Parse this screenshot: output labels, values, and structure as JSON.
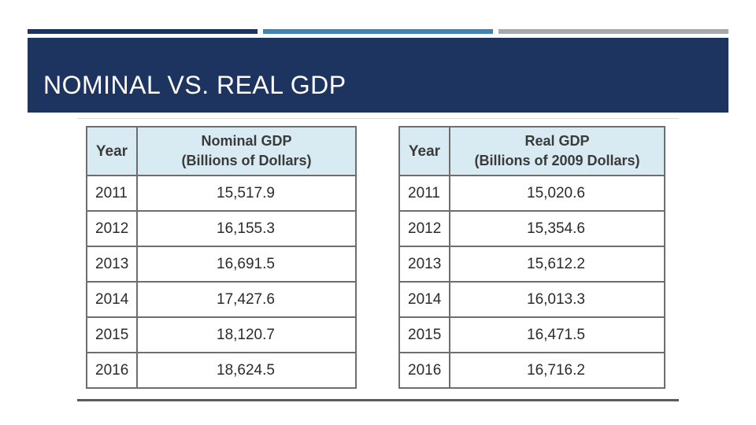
{
  "slide": {
    "title": "NOMINAL VS. REAL GDP",
    "colors": {
      "band": "#1d3461",
      "accent_mid": "#3f84b5",
      "accent_right": "#a3a9ad",
      "header_fill": "#d8ebf3"
    }
  },
  "nominal_table": {
    "year_header": "Year",
    "value_header_line1": "Nominal GDP",
    "value_header_line2": "(Billions of Dollars)",
    "rows": [
      {
        "year": "2011",
        "value": "15,517.9"
      },
      {
        "year": "2012",
        "value": "16,155.3"
      },
      {
        "year": "2013",
        "value": "16,691.5"
      },
      {
        "year": "2014",
        "value": "17,427.6"
      },
      {
        "year": "2015",
        "value": "18,120.7"
      },
      {
        "year": "2016",
        "value": "18,624.5"
      }
    ]
  },
  "real_table": {
    "year_header": "Year",
    "value_header_line1": "Real GDP",
    "value_header_line2": "(Billions of 2009 Dollars)",
    "rows": [
      {
        "year": "2011",
        "value": "15,020.6"
      },
      {
        "year": "2012",
        "value": "15,354.6"
      },
      {
        "year": "2013",
        "value": "15,612.2"
      },
      {
        "year": "2014",
        "value": "16,013.3"
      },
      {
        "year": "2015",
        "value": "16,471.5"
      },
      {
        "year": "2016",
        "value": "16,716.2"
      }
    ]
  }
}
